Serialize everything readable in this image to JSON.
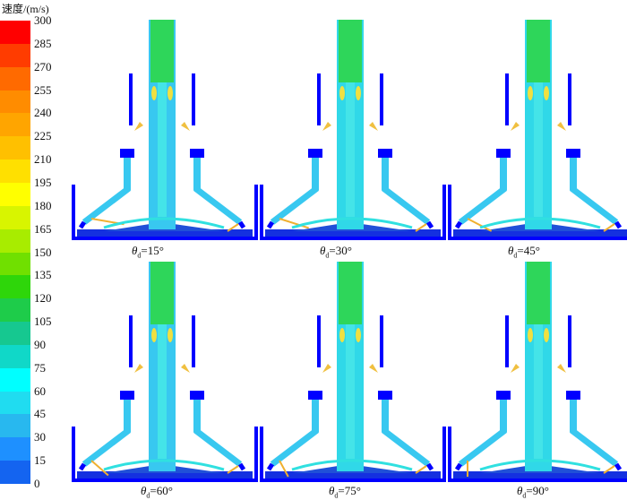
{
  "legend": {
    "title": "速度/(m/s)",
    "ticks": [
      "300",
      "285",
      "270",
      "255",
      "240",
      "225",
      "210",
      "195",
      "180",
      "165",
      "150",
      "135",
      "120",
      "105",
      "90",
      "75",
      "60",
      "45",
      "30",
      "15",
      "0"
    ],
    "colors": [
      "#ff0000",
      "#ff3c00",
      "#ff6a00",
      "#ff8c00",
      "#ffa500",
      "#ffc000",
      "#ffe000",
      "#ffff00",
      "#d8f500",
      "#a8ec00",
      "#70e000",
      "#2ed60a",
      "#1ecc4a",
      "#16c890",
      "#10d8c8",
      "#00ffff",
      "#20dcf0",
      "#28b8ef",
      "#1e90ff",
      "#1464f0",
      "#0a32e6"
    ]
  },
  "panels": [
    {
      "symbol": "θ",
      "subscript": "d",
      "value": "=15°",
      "angle": 15,
      "jet_style": "wide"
    },
    {
      "symbol": "θ",
      "subscript": "d",
      "value": "=30°",
      "angle": 30,
      "jet_style": "cyan"
    },
    {
      "symbol": "θ",
      "subscript": "d",
      "value": "=45°",
      "angle": 45,
      "jet_style": "cyan"
    },
    {
      "symbol": "θ",
      "subscript": "d",
      "value": "=60°",
      "angle": 60,
      "jet_style": "wide"
    },
    {
      "symbol": "θ",
      "subscript": "d",
      "value": "=75°",
      "angle": 75,
      "jet_style": "cyan"
    },
    {
      "symbol": "θ",
      "subscript": "d",
      "value": "=90°",
      "angle": 90,
      "jet_style": "cyan"
    }
  ],
  "colors": {
    "wall": "#0000ff",
    "deep": "#1430e0",
    "jet_top": "#2ed65a",
    "jet_body": "#28d2d8",
    "fluid": "#38c8f0",
    "stream": "#f0b030"
  }
}
